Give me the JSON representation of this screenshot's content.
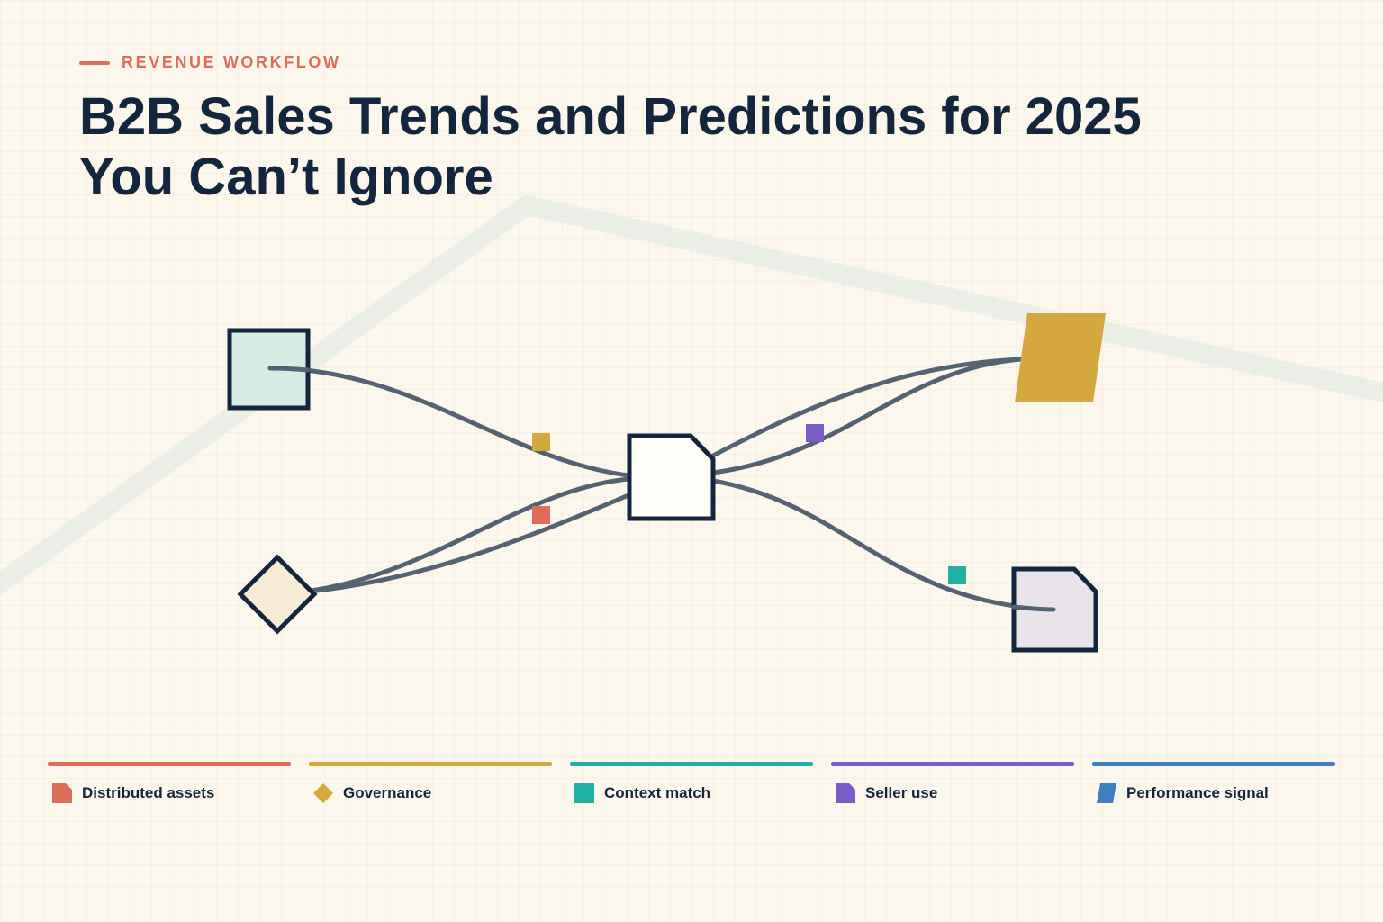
{
  "eyebrow": "REVENUE WORKFLOW",
  "title": {
    "line1": "B2B Sales Trends and Predictions for 2025",
    "line2": "You Can’t Ignore"
  },
  "colors": {
    "red": "#e06d5a",
    "gold": "#d4a73f",
    "teal": "#1fb0a6",
    "purple": "#7a5cc6",
    "blue": "#3e7fc1",
    "navy": "#14263d",
    "connector": "#556272"
  },
  "diagram": {
    "nodes": [
      {
        "name": "source-square-node",
        "shape": "square",
        "fill": "#d5ece5"
      },
      {
        "name": "source-diamond-node",
        "shape": "diamond",
        "fill": "#f6ebd5"
      },
      {
        "name": "hub-document-node",
        "shape": "folded-document",
        "fill": "#fffdf7"
      },
      {
        "name": "target-parallelogram-node",
        "shape": "parallelogram",
        "fill": "#d4a73f"
      },
      {
        "name": "target-document-node",
        "shape": "folded-document",
        "fill": "#e8e4ea"
      }
    ],
    "markers": [
      {
        "name": "connector-marker-gold",
        "color": "#d4a73f"
      },
      {
        "name": "connector-marker-red",
        "color": "#e06d5a"
      },
      {
        "name": "connector-marker-purple",
        "color": "#7a5cc6"
      },
      {
        "name": "connector-marker-teal",
        "color": "#1fb0a6"
      }
    ]
  },
  "legend": [
    {
      "label": "Distributed assets",
      "color": "#e06d5a",
      "icon": "folded-document-icon"
    },
    {
      "label": "Governance",
      "color": "#d4a73f",
      "icon": "diamond-icon"
    },
    {
      "label": "Context match",
      "color": "#1fb0a6",
      "icon": "square-icon"
    },
    {
      "label": "Seller use",
      "color": "#7a5cc6",
      "icon": "folded-document-icon"
    },
    {
      "label": "Performance signal",
      "color": "#3e7fc1",
      "icon": "parallelogram-icon"
    }
  ]
}
